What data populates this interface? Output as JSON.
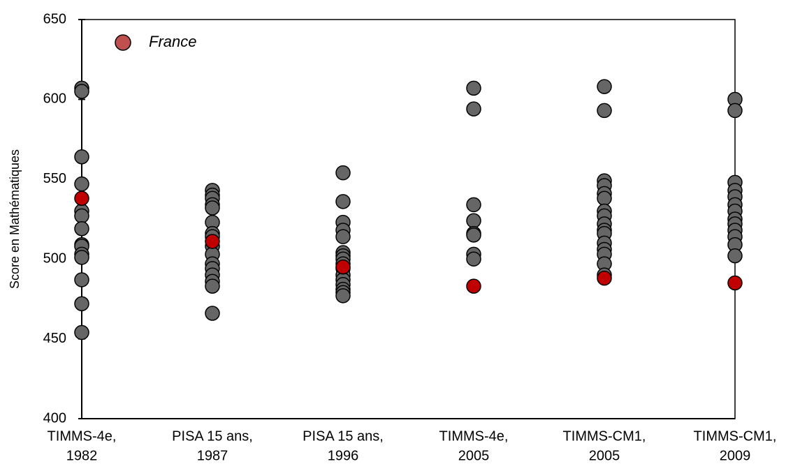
{
  "chart_data": {
    "type": "strip",
    "y_label": "Score en Mathématiques",
    "categories": [
      [
        "TIMMS-4e,",
        "1982"
      ],
      [
        "PISA 15 ans,",
        "1987"
      ],
      [
        "PISA 15 ans,",
        "1996"
      ],
      [
        "TIMMS-4e,",
        "2005"
      ],
      [
        "TIMMS-CM1,",
        "2005"
      ],
      [
        "TIMMS-CM1,",
        "2009"
      ]
    ],
    "series": [
      {
        "color": "#666666",
        "values": [
          [
            607,
            605,
            564,
            547,
            530,
            527,
            519,
            509,
            508,
            503,
            501,
            487,
            472,
            454
          ],
          [
            543,
            540,
            538,
            534,
            532,
            523,
            516,
            514,
            508,
            503,
            497,
            494,
            490,
            486,
            483,
            466
          ],
          [
            554,
            536,
            523,
            518,
            514,
            504,
            502,
            500,
            497,
            494,
            490,
            487,
            484,
            481,
            479,
            477
          ],
          [
            607,
            594,
            534,
            524,
            516,
            515,
            503,
            500
          ],
          [
            608,
            593,
            549,
            546,
            541,
            538,
            530,
            527,
            522,
            518,
            516,
            510,
            506,
            503,
            497,
            490
          ],
          [
            600,
            593,
            548,
            543,
            539,
            534,
            530,
            525,
            522,
            518,
            514,
            509,
            502
          ]
        ]
      },
      {
        "name": "France",
        "color": "#c00000",
        "legend_color": "#c0504d",
        "values": [
          538,
          511,
          495,
          483,
          488,
          485
        ]
      }
    ],
    "ylim": [
      400,
      650
    ],
    "yticks": [
      400,
      450,
      500,
      550,
      600,
      650
    ]
  }
}
